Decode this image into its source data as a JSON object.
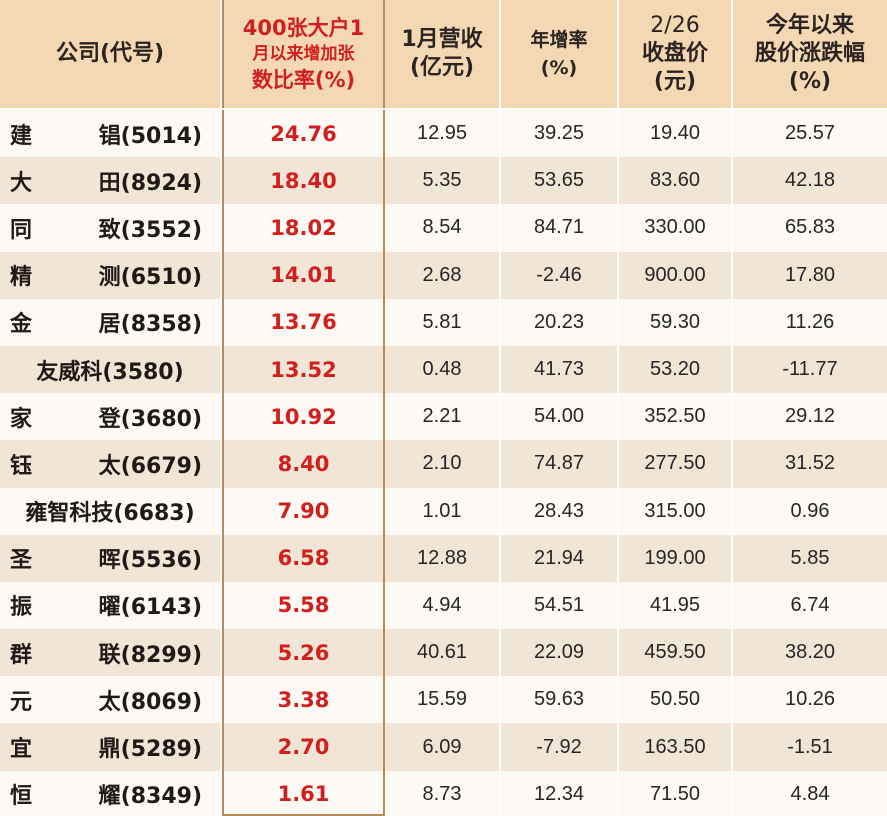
{
  "headers": {
    "company": "公司(代号)",
    "ratio_lines": [
      "400张大户1",
      "月以来增加张",
      "数比率(%)"
    ],
    "revenue_lines": [
      "1月营收",
      "(亿元)"
    ],
    "growth_lines": [
      "年增率",
      "(%)"
    ],
    "close_lines": [
      "2/26",
      "收盘价",
      "(元)"
    ],
    "ytd_lines": [
      "今年以来",
      "股价涨跌幅",
      "(%)"
    ]
  },
  "rows": [
    {
      "name_a": "建",
      "name_b": "锠(5014)",
      "ratio": "24.76",
      "revenue": "12.95",
      "growth": "39.25",
      "close": "19.40",
      "ytd": "25.57"
    },
    {
      "name_a": "大",
      "name_b": "田(8924)",
      "ratio": "18.40",
      "revenue": "5.35",
      "growth": "53.65",
      "close": "83.60",
      "ytd": "42.18"
    },
    {
      "name_a": "同",
      "name_b": "致(3552)",
      "ratio": "18.02",
      "revenue": "8.54",
      "growth": "84.71",
      "close": "330.00",
      "ytd": "65.83"
    },
    {
      "name_a": "精",
      "name_b": "测(6510)",
      "ratio": "14.01",
      "revenue": "2.68",
      "growth": "-2.46",
      "close": "900.00",
      "ytd": "17.80"
    },
    {
      "name_a": "金",
      "name_b": "居(8358)",
      "ratio": "13.76",
      "revenue": "5.81",
      "growth": "20.23",
      "close": "59.30",
      "ytd": "11.26"
    },
    {
      "name_full": "友威科(3580)",
      "ratio": "13.52",
      "revenue": "0.48",
      "growth": "41.73",
      "close": "53.20",
      "ytd": "-11.77"
    },
    {
      "name_a": "家",
      "name_b": "登(3680)",
      "ratio": "10.92",
      "revenue": "2.21",
      "growth": "54.00",
      "close": "352.50",
      "ytd": "29.12"
    },
    {
      "name_a": "钰",
      "name_b": "太(6679)",
      "ratio": "8.40",
      "revenue": "2.10",
      "growth": "74.87",
      "close": "277.50",
      "ytd": "31.52"
    },
    {
      "name_full": "雍智科技(6683)",
      "ratio": "7.90",
      "revenue": "1.01",
      "growth": "28.43",
      "close": "315.00",
      "ytd": "0.96"
    },
    {
      "name_a": "圣",
      "name_b": "晖(5536)",
      "ratio": "6.58",
      "revenue": "12.88",
      "growth": "21.94",
      "close": "199.00",
      "ytd": "5.85"
    },
    {
      "name_a": "振",
      "name_b": "曜(6143)",
      "ratio": "5.58",
      "revenue": "4.94",
      "growth": "54.51",
      "close": "41.95",
      "ytd": "6.74"
    },
    {
      "name_a": "群",
      "name_b": "联(8299)",
      "ratio": "5.26",
      "revenue": "40.61",
      "growth": "22.09",
      "close": "459.50",
      "ytd": "38.20"
    },
    {
      "name_a": "元",
      "name_b": "太(8069)",
      "ratio": "3.38",
      "revenue": "15.59",
      "growth": "59.63",
      "close": "50.50",
      "ytd": "10.26"
    },
    {
      "name_a": "宜",
      "name_b": "鼎(5289)",
      "ratio": "2.70",
      "revenue": "6.09",
      "growth": "-7.92",
      "close": "163.50",
      "ytd": "-1.51"
    },
    {
      "name_a": "恒",
      "name_b": "耀(8349)",
      "ratio": "1.61",
      "revenue": "8.73",
      "growth": "12.34",
      "close": "71.50",
      "ytd": "4.84"
    }
  ],
  "colors": {
    "header_bg": "#f3d8b3",
    "highlight_text": "#d11f1f",
    "frame": "#b98a5d",
    "row_alt": "#f1e5d6"
  }
}
